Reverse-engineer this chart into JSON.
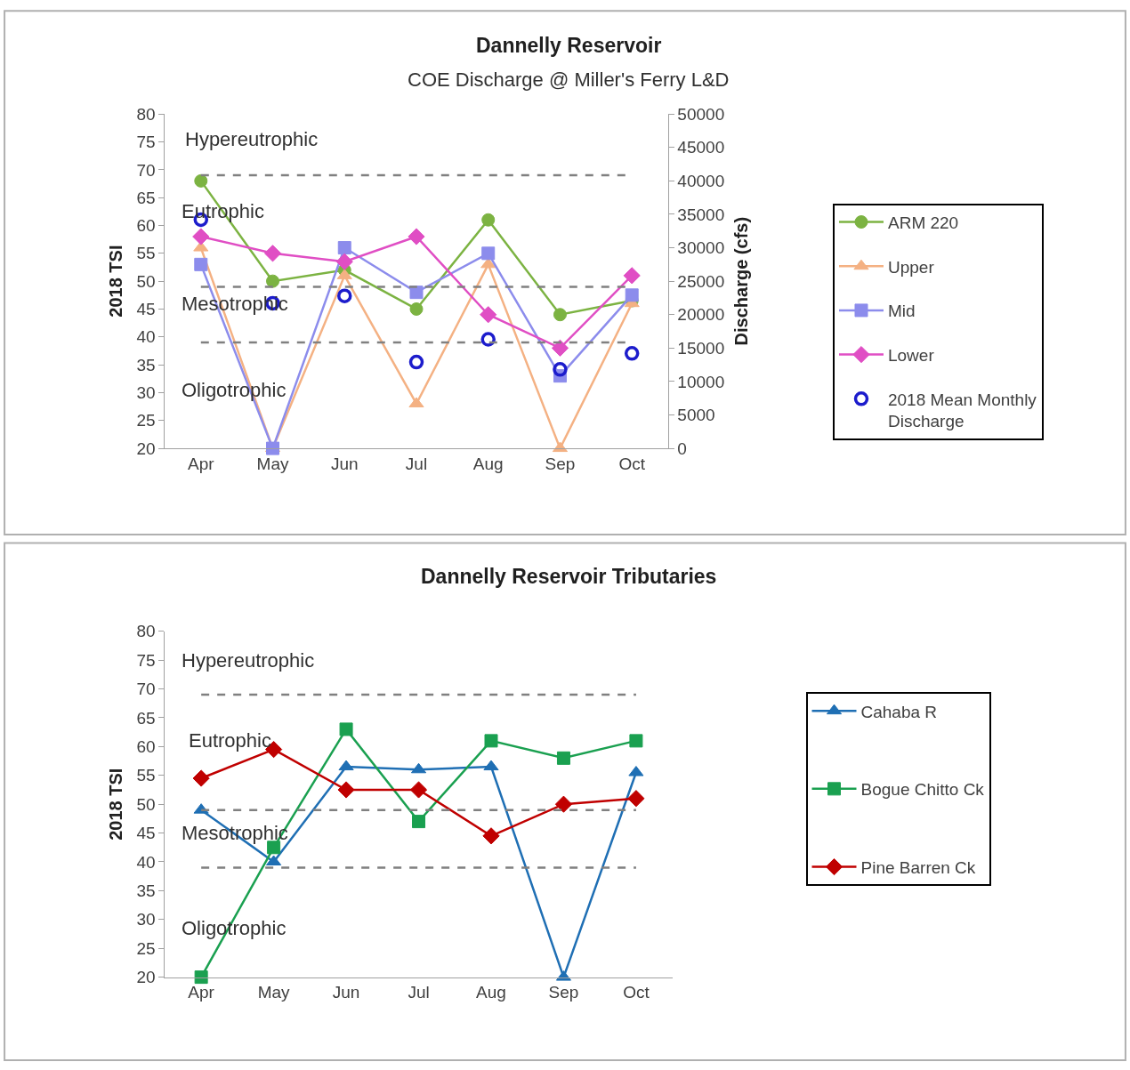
{
  "chart_data": [
    {
      "type": "line",
      "title": "Dannelly Reservoir",
      "subtitle": "COE Discharge @ Miller's Ferry L&D",
      "ylabel": "2018 TSI",
      "y2label": "Discharge (cfs)",
      "categories": [
        "Apr",
        "May",
        "Jun",
        "Jul",
        "Aug",
        "Sep",
        "Oct"
      ],
      "ylim": [
        20,
        80
      ],
      "yticks": [
        20,
        25,
        30,
        35,
        40,
        45,
        50,
        55,
        60,
        65,
        70,
        75,
        80
      ],
      "y2lim": [
        0,
        50000
      ],
      "y2ticks": [
        0,
        5000,
        10000,
        15000,
        20000,
        25000,
        30000,
        35000,
        40000,
        45000,
        50000
      ],
      "legend": "right",
      "series": [
        {
          "name": "ARM 220",
          "color": "#7cb342",
          "marker": "circle",
          "values": [
            68,
            50,
            52,
            45,
            61,
            44,
            46.5
          ]
        },
        {
          "name": "Upper",
          "color": "#f4b183",
          "marker": "triangle",
          "values": [
            56,
            20,
            51,
            28,
            53,
            20,
            46
          ]
        },
        {
          "name": "Mid",
          "color": "#8c8cec",
          "marker": "square",
          "values": [
            53,
            20,
            56,
            48,
            55,
            33,
            47.5
          ]
        },
        {
          "name": "Lower",
          "color": "#e04ec4",
          "marker": "diamond",
          "values": [
            58,
            55,
            53.5,
            58,
            44,
            38,
            51
          ]
        },
        {
          "name": "2018 Mean Monthly Discharge",
          "type": "scatter",
          "axis": "y2",
          "color": "#1c1ccc",
          "marker": "circle",
          "values": [
            34200,
            21700,
            22800,
            12900,
            16300,
            11800,
            14200
          ]
        }
      ],
      "ref_lines": [
        {
          "axis": "y",
          "value": 69,
          "color": "#808080",
          "line_style": "dashed"
        },
        {
          "axis": "y",
          "value": 49,
          "color": "#808080",
          "line_style": "dashed"
        },
        {
          "axis": "y",
          "value": 39,
          "color": "#808080",
          "line_style": "dashed"
        }
      ],
      "annotations": [
        "Hypereutrophic",
        "Eutrophic",
        "Mesotrophic",
        "Oligotrophic"
      ]
    },
    {
      "type": "line",
      "title": "Dannelly Reservoir Tributaries",
      "ylabel": "2018 TSI",
      "categories": [
        "Apr",
        "May",
        "Jun",
        "Jul",
        "Aug",
        "Sep",
        "Oct"
      ],
      "ylim": [
        20,
        80
      ],
      "yticks": [
        20,
        25,
        30,
        35,
        40,
        45,
        50,
        55,
        60,
        65,
        70,
        75,
        80
      ],
      "legend": "right",
      "series": [
        {
          "name": "Cahaba R",
          "color": "#1f6fb4",
          "marker": "triangle",
          "values": [
            49,
            40,
            56.5,
            56,
            56.5,
            20,
            55.5
          ]
        },
        {
          "name": "Bogue Chitto Ck",
          "color": "#1aa050",
          "marker": "square",
          "values": [
            20,
            42.5,
            63,
            47,
            61,
            58,
            61
          ]
        },
        {
          "name": "Pine Barren Ck",
          "color": "#c00000",
          "marker": "diamond",
          "values": [
            54.5,
            59.5,
            52.5,
            52.5,
            44.5,
            50,
            51
          ]
        }
      ],
      "ref_lines": [
        {
          "axis": "y",
          "value": 69,
          "color": "#808080",
          "line_style": "dashed"
        },
        {
          "axis": "y",
          "value": 49,
          "color": "#808080",
          "line_style": "dashed"
        },
        {
          "axis": "y",
          "value": 39,
          "color": "#808080",
          "line_style": "dashed"
        }
      ],
      "annotations": [
        "Hypereutrophic",
        "Eutrophic",
        "Mesotrophic",
        "Oligotrophic"
      ]
    }
  ]
}
